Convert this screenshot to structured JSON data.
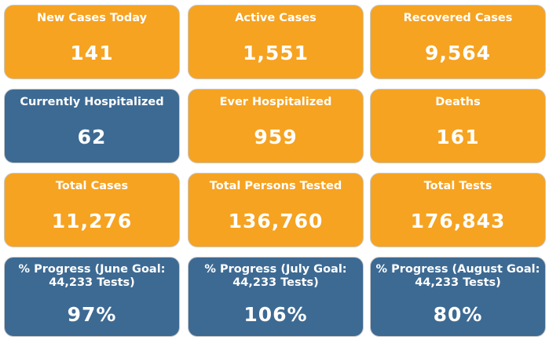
{
  "colors": {
    "orange": "#f6a321",
    "blue": "#3d6a93",
    "text": "#ffffff"
  },
  "cards": [
    {
      "label": "New Cases Today",
      "value": "141",
      "color": "orange"
    },
    {
      "label": "Active Cases",
      "value": "1,551",
      "color": "orange"
    },
    {
      "label": "Recovered Cases",
      "value": "9,564",
      "color": "orange"
    },
    {
      "label": "Currently Hospitalized",
      "value": "62",
      "color": "blue"
    },
    {
      "label": "Ever Hospitalized",
      "value": "959",
      "color": "orange"
    },
    {
      "label": "Deaths",
      "value": "161",
      "color": "orange"
    },
    {
      "label": "Total Cases",
      "value": "11,276",
      "color": "orange"
    },
    {
      "label": "Total Persons Tested",
      "value": "136,760",
      "color": "orange"
    },
    {
      "label": "Total Tests",
      "value": "176,843",
      "color": "orange"
    },
    {
      "label": "% Progress (June Goal: 44,233 Tests)",
      "value": "97%",
      "color": "blue"
    },
    {
      "label": "% Progress (July Goal: 44,233 Tests)",
      "value": "106%",
      "color": "blue"
    },
    {
      "label": "% Progress (August Goal: 44,233 Tests)",
      "value": "80%",
      "color": "blue"
    }
  ]
}
